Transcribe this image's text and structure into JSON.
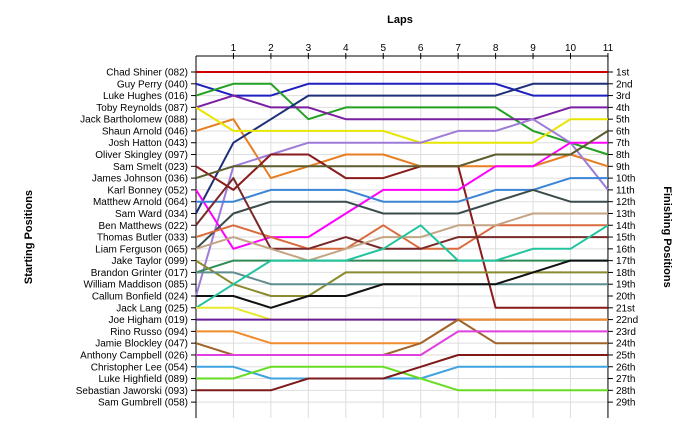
{
  "chart_data": {
    "type": "line",
    "title": "Laps",
    "ylabel_left": "Starting Positions",
    "ylabel_right": "Finishing Positions",
    "x": [
      0,
      1,
      2,
      3,
      4,
      5,
      6,
      7,
      8,
      9,
      10,
      11
    ],
    "xticks": [
      "1",
      "2",
      "3",
      "4",
      "5",
      "6",
      "7",
      "8",
      "9",
      "10",
      "11"
    ],
    "starting_labels": [
      "Chad Shiner (082)",
      "Guy Perry (040)",
      "Luke Hughes (016)",
      "Toby Reynolds (087)",
      "Jack Bartholomew (088)",
      "Shaun Arnold (046)",
      "Josh Hatton (043)",
      "Oliver Skingley (097)",
      "Sam Smelt (023)",
      "James Johnson (036)",
      "Karl Bonney (052)",
      "Matthew Arnold (064)",
      "Sam Ward (034)",
      "Ben Matthews (022)",
      "Thomas Butler (033)",
      "Liam Ferguson (065)",
      "Jake Taylor (099)",
      "Brandon Grinter (017)",
      "William Maddison (085)",
      "Callum Bonfield (024)",
      "Jack Lang (025)",
      "Joe Higham (019)",
      "Rino Russo (094)",
      "Jamie Blockley (047)",
      "Anthony Campbell (026)",
      "Christopher Lee (054)",
      "Luke Highfield (089)",
      "Sebastian Jaworski (093)",
      "Sam Gumbrell (058)"
    ],
    "finishing_labels": [
      "1st",
      "2nd",
      "3rd",
      "4th",
      "5th",
      "6th",
      "7th",
      "8th",
      "9th",
      "10th",
      "11th",
      "12th",
      "13th",
      "14th",
      "15th",
      "16th",
      "17th",
      "18th",
      "19th",
      "20th",
      "21st",
      "22nd",
      "23rd",
      "24th",
      "25th",
      "26th",
      "27th",
      "28th",
      "29th"
    ],
    "ylim": [
      1,
      29
    ],
    "grid": true,
    "series": [
      {
        "color": "#cc0000",
        "values": [
          1,
          1,
          1,
          1,
          1,
          1,
          1,
          1,
          1,
          1,
          1,
          1
        ]
      },
      {
        "color": "#1f1fbf",
        "values": [
          2,
          3,
          3,
          2,
          2,
          2,
          2,
          2,
          2,
          3,
          3,
          3
        ]
      },
      {
        "color": "#22a022",
        "values": [
          3,
          2,
          2,
          5,
          4,
          4,
          4,
          4,
          4,
          6,
          7,
          8
        ]
      },
      {
        "color": "#7b1fa2",
        "values": [
          4,
          3,
          4,
          4,
          5,
          5,
          5,
          5,
          5,
          5,
          4,
          4
        ]
      },
      {
        "color": "#e67e22",
        "values": [
          6,
          5,
          10,
          9,
          8,
          8,
          9,
          9,
          9,
          9,
          8,
          9
        ]
      },
      {
        "color": "#1e2f7a",
        "values": [
          13,
          7,
          5,
          3,
          3,
          3,
          3,
          3,
          3,
          2,
          2,
          2
        ]
      },
      {
        "color": "#e6e600",
        "values": [
          4,
          6,
          6,
          6,
          6,
          6,
          7,
          7,
          7,
          7,
          5,
          5
        ]
      },
      {
        "color": "#9e7bd8",
        "values": [
          20,
          9,
          8,
          7,
          7,
          7,
          7,
          6,
          6,
          5,
          7,
          11
        ]
      },
      {
        "color": "#8b1a1a",
        "values": [
          9,
          11,
          8,
          8,
          10,
          10,
          9,
          9,
          21,
          21,
          21,
          21
        ]
      },
      {
        "color": "#ff00ff",
        "values": [
          11,
          16,
          15,
          15,
          13,
          11,
          11,
          11,
          9,
          9,
          7,
          7
        ]
      },
      {
        "color": "#5c5c2e",
        "values": [
          10,
          9,
          9,
          9,
          9,
          9,
          9,
          9,
          8,
          8,
          8,
          6
        ]
      },
      {
        "color": "#3a85d6",
        "values": [
          12,
          12,
          11,
          11,
          11,
          12,
          12,
          12,
          11,
          11,
          10,
          10
        ]
      },
      {
        "color": "#3b4b4b",
        "values": [
          16,
          13,
          12,
          12,
          12,
          13,
          13,
          13,
          12,
          11,
          12,
          12
        ]
      },
      {
        "color": "#d96b3e",
        "values": [
          15,
          14,
          15,
          16,
          16,
          14,
          16,
          16,
          14,
          14,
          14,
          14
        ]
      },
      {
        "color": "#7a2929",
        "values": [
          14,
          10,
          16,
          16,
          15,
          16,
          16,
          15,
          15,
          15,
          15,
          15
        ]
      },
      {
        "color": "#c4a484",
        "values": [
          16,
          15,
          16,
          17,
          16,
          15,
          15,
          14,
          14,
          13,
          13,
          13
        ]
      },
      {
        "color": "#2e8b57",
        "values": [
          18,
          17,
          17,
          17,
          17,
          17,
          17,
          17,
          17,
          17,
          17,
          17
        ]
      },
      {
        "color": "#8a8a2e",
        "values": [
          17,
          19,
          20,
          20,
          18,
          18,
          18,
          18,
          18,
          18,
          18,
          18
        ]
      },
      {
        "color": "#5f8d8d",
        "values": [
          18,
          18,
          19,
          19,
          19,
          19,
          19,
          19,
          19,
          19,
          19,
          19
        ]
      },
      {
        "color": "#111111",
        "values": [
          20,
          20,
          21,
          20,
          20,
          19,
          19,
          19,
          19,
          18,
          17,
          17
        ]
      },
      {
        "color": "#22c49e",
        "values": [
          21,
          19,
          17,
          17,
          17,
          16,
          14,
          17,
          17,
          16,
          16,
          14
        ]
      },
      {
        "color": "#e8e830",
        "values": [
          21,
          21,
          22,
          22,
          22,
          22,
          22,
          22,
          22,
          22,
          22,
          22
        ]
      },
      {
        "color": "#6a1b9a",
        "values": [
          22,
          22,
          22,
          22,
          22,
          22,
          22,
          22,
          22,
          22,
          22,
          22
        ]
      },
      {
        "color": "#f08c2c",
        "values": [
          23,
          23,
          24,
          24,
          24,
          24,
          24,
          22,
          22,
          22,
          22,
          22
        ]
      },
      {
        "color": "#a0632b",
        "values": [
          24,
          25,
          25,
          25,
          25,
          25,
          24,
          22,
          24,
          24,
          24,
          24
        ]
      },
      {
        "color": "#e040e0",
        "values": [
          25,
          25,
          25,
          25,
          25,
          25,
          25,
          23,
          23,
          23,
          23,
          23
        ]
      },
      {
        "color": "#3fa3e0",
        "values": [
          26,
          26,
          27,
          27,
          27,
          27,
          27,
          26,
          26,
          26,
          26,
          26
        ]
      },
      {
        "color": "#66dd22",
        "values": [
          27,
          27,
          26,
          26,
          26,
          26,
          27,
          28,
          28,
          28,
          28,
          28
        ]
      },
      {
        "color": "#7f1a1a",
        "values": [
          28,
          28,
          28,
          27,
          27,
          27,
          26,
          25,
          25,
          25,
          25,
          25
        ]
      }
    ]
  }
}
